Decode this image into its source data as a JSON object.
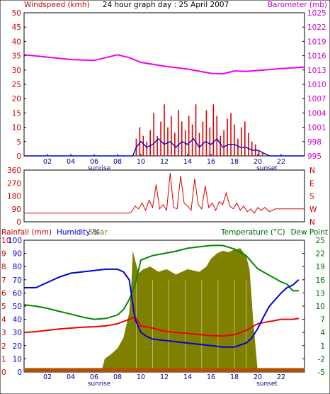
{
  "header": {
    "left_label": "Windspeed (kmh)",
    "center_title": "24 hour graph day : 25 April 2007",
    "right_label": "Barometer (mb)"
  },
  "labels": {
    "sunrise": "sunrise",
    "sunset": "sunset",
    "rain_label": "Rainfall (mm)",
    "humidity_label": "Humidity %",
    "solar_label": "Solar",
    "temp_label": "Temperature (°C)",
    "dew_label": "Dew Point"
  },
  "colors": {
    "wind": "#dd0000",
    "gust_blue": "#0000cc",
    "baro": "#ee00ee",
    "humidity": "#0000dd",
    "temp": "#ee0000",
    "dew": "#008800",
    "solar": "#808000",
    "rain": "#b05000",
    "axis_red": "#cc0000",
    "axis_baro": "#cc00cc",
    "axis_green": "#006600"
  },
  "chart_data": [
    {
      "id": "wind_baro",
      "type": "line",
      "title": "24 hour graph day : 25 April 2007",
      "xlabel": "",
      "x_ticks": [
        "02",
        "04",
        "06",
        "08",
        "10",
        "12",
        "14",
        "16",
        "18",
        "20",
        "22"
      ],
      "xlim": [
        0,
        24
      ],
      "y_left": {
        "label": "Windspeed (kmh)",
        "ticks": [
          0,
          5,
          10,
          15,
          20,
          25,
          30,
          35,
          40,
          45,
          50
        ],
        "lim": [
          0,
          50
        ]
      },
      "y_right": {
        "label": "Barometer (mb)",
        "ticks": [
          995,
          998,
          1001,
          1004,
          1007,
          1010,
          1013,
          1016,
          1019,
          1022,
          1025
        ],
        "lim": [
          995,
          1025
        ]
      },
      "series": [
        {
          "name": "Windspeed (kmh)",
          "style": "bars",
          "x": [
            9.3,
            9.6,
            9.9,
            10.2,
            10.5,
            10.8,
            11.1,
            11.4,
            11.7,
            12.0,
            12.3,
            12.6,
            12.9,
            13.2,
            13.5,
            13.8,
            14.1,
            14.4,
            14.7,
            15.0,
            15.3,
            15.6,
            15.9,
            16.2,
            16.5,
            16.8,
            17.1,
            17.4,
            17.7,
            18.0,
            18.3,
            18.6,
            18.9,
            19.2,
            19.5,
            19.8,
            20.1,
            20.4,
            20.7
          ],
          "values": [
            0,
            6,
            10,
            7,
            5,
            9,
            15,
            7,
            12,
            18,
            10,
            14,
            8,
            16,
            12,
            9,
            14,
            11,
            18,
            8,
            12,
            16,
            10,
            18,
            14,
            7,
            9,
            13,
            15,
            11,
            6,
            10,
            12,
            8,
            5,
            4,
            2,
            1,
            0
          ]
        },
        {
          "name": "Average windspeed",
          "style": "line",
          "x": [
            0,
            9.3,
            9.6,
            10.0,
            10.5,
            11.0,
            11.5,
            12.0,
            12.5,
            13.0,
            13.5,
            14.0,
            14.5,
            15.0,
            15.5,
            16.0,
            16.5,
            17.0,
            17.5,
            18.0,
            18.5,
            19.0,
            19.5,
            20.0,
            20.5,
            21.0,
            22.0,
            24.0
          ],
          "values": [
            0,
            0,
            3,
            5,
            3,
            4,
            6,
            4,
            5,
            3,
            5,
            4,
            6,
            3,
            5,
            4,
            6,
            3,
            4,
            4,
            3,
            3,
            2,
            2,
            1,
            0,
            0,
            0
          ]
        },
        {
          "name": "Barometer (mb)",
          "axis": "right",
          "style": "line",
          "x": [
            0,
            2,
            4,
            6,
            8,
            9,
            10,
            12,
            14,
            16,
            17,
            18,
            19,
            20,
            22,
            24
          ],
          "values": [
            1016.2,
            1015.7,
            1015.2,
            1015.0,
            1016.2,
            1015.6,
            1014.6,
            1013.8,
            1013.2,
            1012.3,
            1012.2,
            1012.8,
            1012.7,
            1012.9,
            1013.3,
            1013.6
          ]
        }
      ],
      "annotations": [
        "sunrise",
        "sunset"
      ]
    },
    {
      "id": "wind_direction",
      "type": "line",
      "title": "",
      "xlim": [
        0,
        24
      ],
      "y_left": {
        "label": "",
        "ticks": [
          0,
          90,
          180,
          270,
          360
        ],
        "lim": [
          0,
          360
        ]
      },
      "y_right": {
        "label": "",
        "ticks": [
          "N",
          "W",
          "S",
          "E",
          "N"
        ],
        "lim": [
          0,
          360
        ]
      },
      "series": [
        {
          "name": "Wind direction",
          "x": [
            0,
            9.0,
            9.2,
            9.5,
            9.8,
            10.1,
            10.4,
            10.7,
            11.0,
            11.3,
            11.6,
            11.9,
            12.2,
            12.5,
            12.8,
            13.1,
            13.4,
            13.7,
            14.0,
            14.3,
            14.6,
            14.9,
            15.2,
            15.5,
            15.8,
            16.1,
            16.4,
            16.7,
            17.0,
            17.3,
            17.6,
            17.9,
            18.2,
            18.5,
            18.8,
            19.1,
            19.4,
            19.7,
            20.0,
            20.3,
            20.6,
            21.0,
            21.5,
            22.0,
            24.0
          ],
          "values": [
            60,
            60,
            70,
            110,
            90,
            130,
            80,
            150,
            100,
            260,
            90,
            120,
            80,
            340,
            100,
            90,
            320,
            130,
            110,
            80,
            300,
            120,
            90,
            250,
            100,
            130,
            80,
            140,
            120,
            200,
            110,
            90,
            130,
            80,
            110,
            70,
            90,
            60,
            100,
            80,
            100,
            70,
            90,
            90,
            90
          ]
        }
      ]
    },
    {
      "id": "temp_humidity",
      "type": "line",
      "title": "",
      "xlim": [
        0,
        24
      ],
      "x_ticks": [
        "02",
        "04",
        "06",
        "08",
        "10",
        "12",
        "14",
        "16",
        "18",
        "20",
        "22"
      ],
      "y_left_rain": {
        "label": "Rainfall (mm)",
        "ticks": [
          0,
          1,
          2,
          3,
          4,
          5,
          6,
          7,
          8,
          9,
          10
        ],
        "lim": [
          0,
          10
        ]
      },
      "y_left_humidity": {
        "label": "Humidity %",
        "ticks": [
          0,
          10,
          20,
          30,
          40,
          50,
          60,
          70,
          80,
          90,
          100
        ],
        "lim": [
          0,
          100
        ]
      },
      "y_right": {
        "label": "Temperature (°C)",
        "ticks": [
          -5,
          -2,
          1,
          4,
          7,
          10,
          13,
          16,
          19,
          22,
          25
        ],
        "lim": [
          -5,
          25
        ]
      },
      "series": [
        {
          "name": "Solar",
          "style": "area",
          "x": [
            0,
            6.6,
            6.9,
            7.5,
            8.0,
            8.5,
            9.0,
            9.2,
            9.3,
            9.5,
            9.8,
            10.2,
            10.8,
            11.5,
            12.2,
            13.0,
            14.0,
            15.0,
            15.6,
            16.0,
            16.5,
            17.0,
            17.5,
            18.0,
            18.5,
            19.0,
            19.3,
            19.6,
            19.8,
            20.0,
            24.0
          ],
          "values": [
            0,
            0,
            10,
            14,
            18,
            26,
            45,
            70,
            92,
            85,
            75,
            78,
            80,
            76,
            78,
            74,
            78,
            76,
            80,
            86,
            90,
            92,
            91,
            93,
            94,
            88,
            78,
            40,
            20,
            0,
            0
          ]
        },
        {
          "name": "Humidity %",
          "style": "line",
          "x": [
            0,
            1,
            2,
            3,
            4,
            5,
            6,
            7,
            7.5,
            8,
            8.5,
            9,
            9.5,
            10,
            10.5,
            11,
            12,
            13,
            14,
            15,
            16,
            17,
            18,
            19,
            19.5,
            20,
            20.5,
            21,
            22,
            22.5,
            23,
            23.5
          ],
          "values": [
            64,
            64,
            68,
            72,
            75,
            76,
            77,
            78,
            78,
            78,
            76,
            70,
            40,
            30,
            27,
            25,
            24,
            23,
            22,
            21,
            20,
            19,
            19,
            22,
            26,
            33,
            42,
            50,
            60,
            64,
            66,
            70
          ]
        },
        {
          "name": "Temperature (°C)",
          "axis": "right",
          "style": "line",
          "x": [
            0,
            1,
            2,
            3,
            4,
            5,
            6,
            7,
            8,
            8.5,
            9,
            9.5,
            10,
            11,
            12,
            13,
            14,
            15,
            16,
            17,
            18,
            19,
            20,
            21,
            22,
            22.5,
            23,
            23.5
          ],
          "values": [
            10.3,
            10.0,
            9.5,
            8.8,
            8.2,
            7.5,
            7.0,
            7.2,
            8.0,
            9.2,
            11.5,
            15,
            20.5,
            21.5,
            22,
            22.5,
            23.2,
            23.5,
            23.8,
            23.8,
            23,
            21.5,
            18.5,
            17,
            15.5,
            15,
            13.5,
            13.5
          ]
        },
        {
          "name": "Dew Point",
          "axis": "right",
          "style": "line",
          "x": [
            0,
            1,
            2,
            3,
            4,
            5,
            6,
            7,
            8,
            8.5,
            9,
            9.5,
            10,
            11,
            12,
            13,
            14,
            15,
            16,
            17,
            18,
            19,
            20,
            21,
            22,
            22.5,
            23,
            23.5
          ],
          "values": [
            4.0,
            4.2,
            4.5,
            4.8,
            5.0,
            5.2,
            5.3,
            5.5,
            6.0,
            6.5,
            7.0,
            7.5,
            5.5,
            5.0,
            4.3,
            4.0,
            3.8,
            3.5,
            3.3,
            3.2,
            3.5,
            4.5,
            6.0,
            6.5,
            7.0,
            7.0,
            7.0,
            7.2
          ]
        },
        {
          "name": "Rainfall (mm)",
          "style": "area",
          "x": [
            0,
            24
          ],
          "values": [
            0.15,
            0.15
          ]
        }
      ],
      "annotations": [
        "sunrise",
        "sunset"
      ]
    }
  ]
}
